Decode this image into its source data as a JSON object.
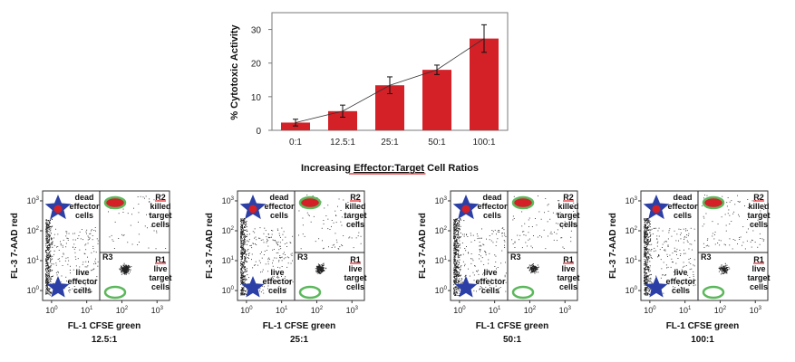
{
  "chart_data": [
    {
      "type": "bar",
      "title": "",
      "xlabel": "Increasing Effector:Target Cell Ratios",
      "xlabel_parts": [
        "Increasing ",
        "Effector:Target",
        " Cell Ratios"
      ],
      "ylabel": "% Cytotoxic Activity",
      "categories": [
        "0:1",
        "12.5:1",
        "25:1",
        "50:1",
        "100:1"
      ],
      "values": [
        2.3,
        5.7,
        13.4,
        18.0,
        27.3
      ],
      "error": [
        1.0,
        1.8,
        2.5,
        1.4,
        4.1
      ],
      "ylim": [
        0,
        35
      ],
      "yticks": [
        0,
        10,
        20,
        30
      ],
      "trend_line": true,
      "grid": false,
      "bar_color": "#d42027"
    },
    {
      "type": "scatter",
      "panels": [
        {
          "caption": "12.5:1",
          "live_effector": 0.45,
          "r1": 0.3,
          "killed": 0.06,
          "dead_effector": 0.19
        },
        {
          "caption": "25:1",
          "live_effector": 0.5,
          "r1": 0.2,
          "killed": 0.1,
          "dead_effector": 0.2
        },
        {
          "caption": "50:1",
          "live_effector": 0.55,
          "r1": 0.16,
          "killed": 0.1,
          "dead_effector": 0.19
        },
        {
          "caption": "100:1",
          "live_effector": 0.55,
          "r1": 0.14,
          "killed": 0.12,
          "dead_effector": 0.19
        }
      ],
      "xlabel": "FL-1 CFSE green",
      "ylabel": "FL-3 7-AAD red",
      "xticks": [
        "0",
        "1",
        "2",
        "3"
      ],
      "yticks": [
        "0",
        "1",
        "2",
        "3"
      ],
      "tick_base": "10",
      "quadrant_labels": {
        "dead_effector": [
          "dead",
          "effector",
          "cells"
        ],
        "killed_target": [
          "R2",
          "killed",
          "target",
          "cells"
        ],
        "r3": "R3",
        "live_effector": [
          "live",
          "effector",
          "cells"
        ],
        "live_target": [
          "R1",
          "live",
          "target",
          "cells"
        ]
      },
      "colors": {
        "star": "#2b3fa6",
        "star_dot": "#d42027",
        "ellipse": "#5cb85c",
        "ellipse_fill": "#d42027",
        "underline": "#e31e24"
      }
    }
  ]
}
